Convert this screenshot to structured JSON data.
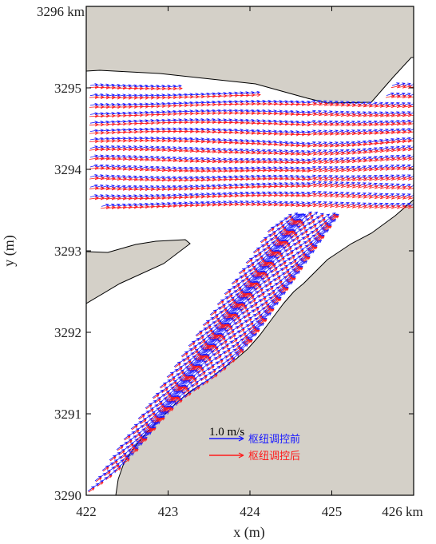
{
  "chart_data": {
    "type": "quiver",
    "title": "",
    "xlabel": "x (m)",
    "ylabel": "y (m)",
    "xlim": [
      422,
      426
    ],
    "ylim": [
      3290,
      3296
    ],
    "x_ticks": [
      "422",
      "423",
      "424",
      "425",
      "426 km"
    ],
    "y_ticks": [
      "3290",
      "3291",
      "3292",
      "3293",
      "3294",
      "3295",
      "3296 km"
    ],
    "x_tick_values": [
      422,
      423,
      424,
      425,
      426
    ],
    "y_tick_values": [
      3290,
      3291,
      3292,
      3293,
      3294,
      3295,
      3296
    ],
    "scale_label": "1.0 m/s",
    "series": [
      {
        "name": "枢纽调控前",
        "color": "#1a1aff"
      },
      {
        "name": "枢纽调控后",
        "color": "#ff1a1a"
      }
    ],
    "land_color": "#d4d0c8",
    "grid": false,
    "legend_position": "bottom-center"
  }
}
